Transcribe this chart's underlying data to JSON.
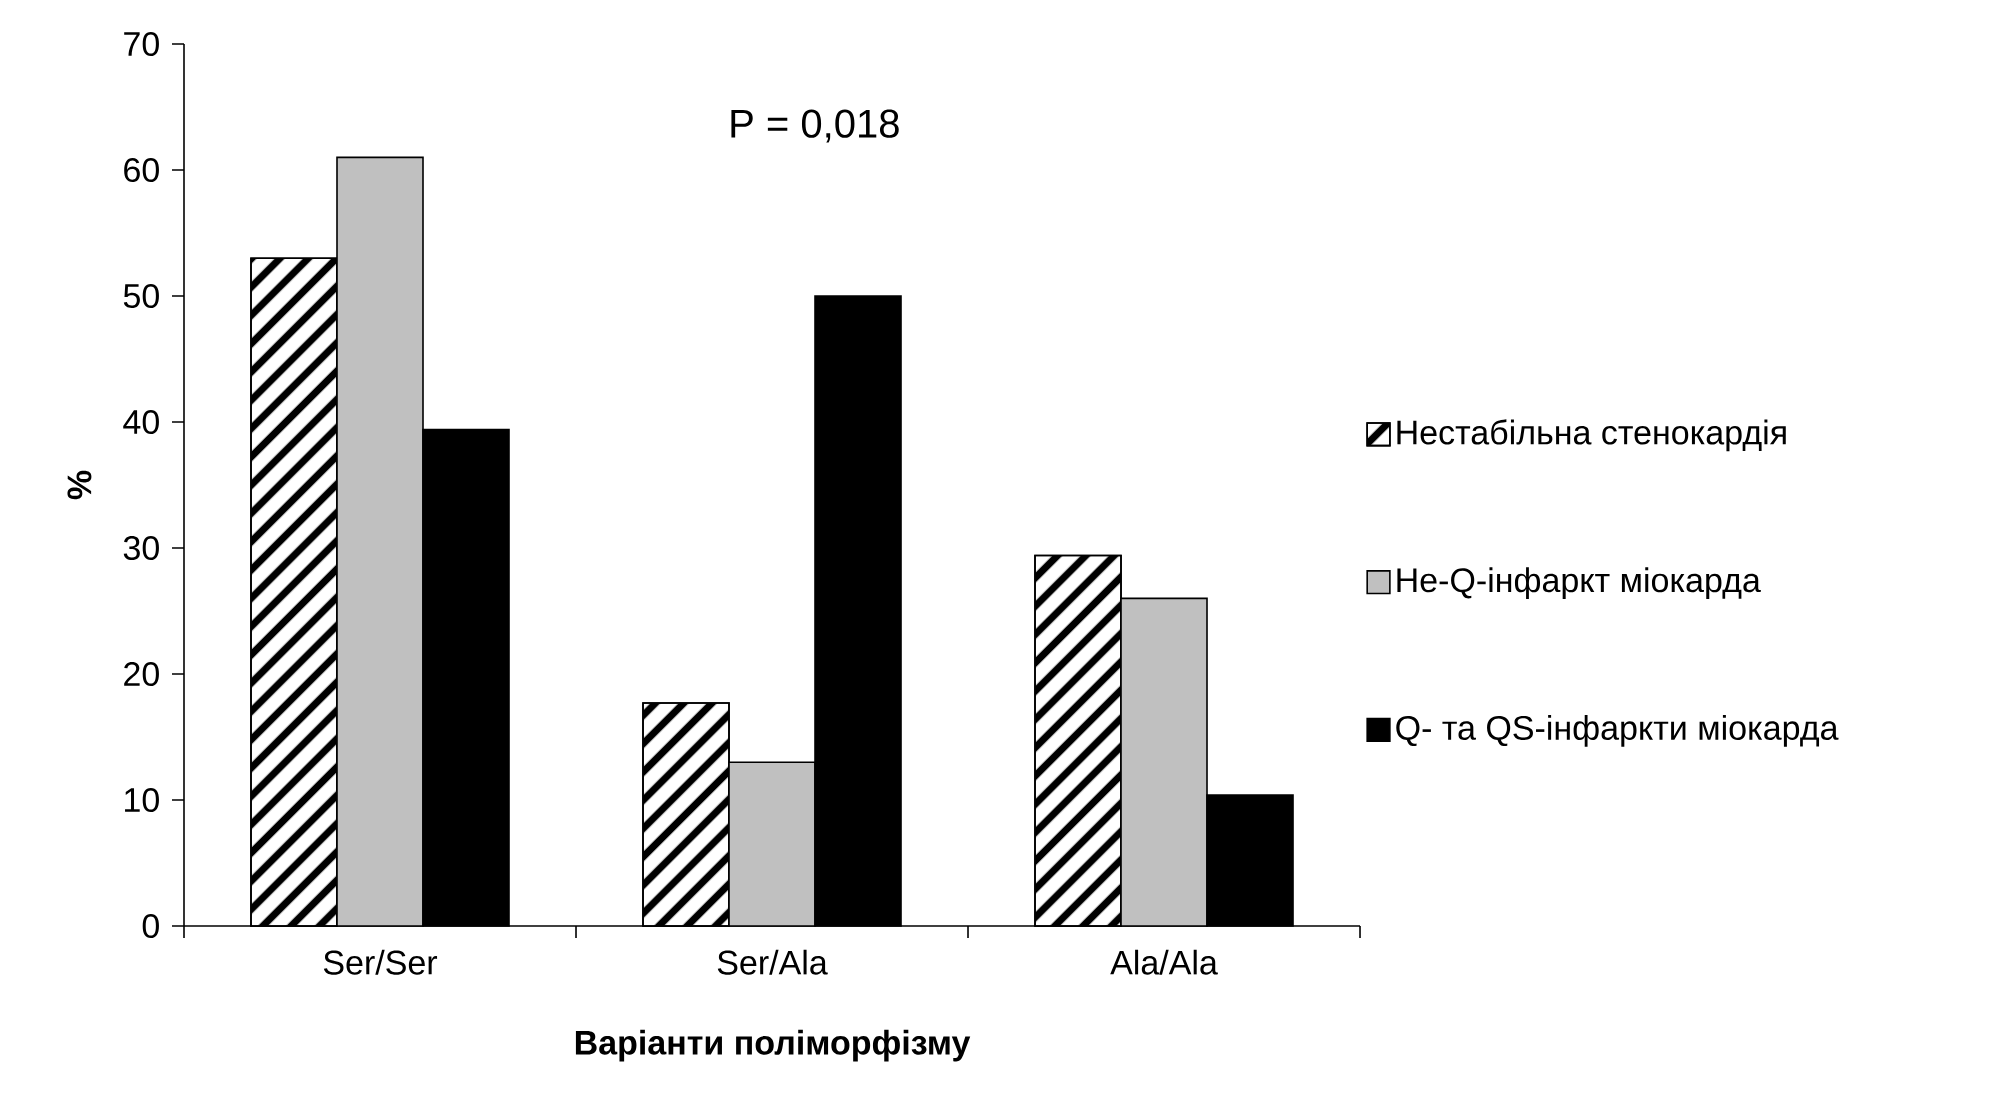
{
  "chart_data": {
    "type": "bar",
    "xlabel": "Варіанти поліморфізму",
    "ylabel": "%",
    "categories": [
      "Ser/Ser",
      "Ser/Ala",
      "Ala/Ala"
    ],
    "series": [
      {
        "name": "Нестабільна стенокардія",
        "color": "#000000",
        "values": [
          53,
          17.7,
          29.4
        ]
      },
      {
        "name": "Не-Q-інфаркт міокарда",
        "color": "#c0c0c0",
        "values": [
          61,
          13,
          26
        ]
      },
      {
        "name": "Q- та  QS-інфаркти міокарда",
        "color": "#000000",
        "values": [
          39.4,
          50,
          10.4
        ]
      }
    ],
    "ylim": [
      0,
      70
    ],
    "yticks": [
      0,
      10,
      20,
      30,
      40,
      50,
      60,
      70
    ],
    "grid": false,
    "legend": "right",
    "annotations": [
      "P = 0,018"
    ]
  }
}
